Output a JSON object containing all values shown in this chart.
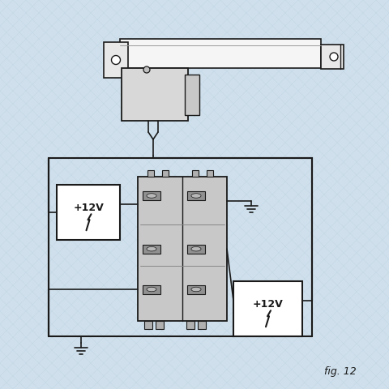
{
  "bg_color": "#cfe0ec",
  "line_color": "#1a1a1a",
  "white": "#ffffff",
  "light_gray": "#e8e8e8",
  "mid_gray": "#d0d0d0",
  "dark_gray": "#b0b0b0",
  "fig_label": "fig. 12",
  "pattern_color": "#b8cfe0",
  "relay_fill": "#c8c8c8",
  "connector_fill": "#a0a0a0"
}
